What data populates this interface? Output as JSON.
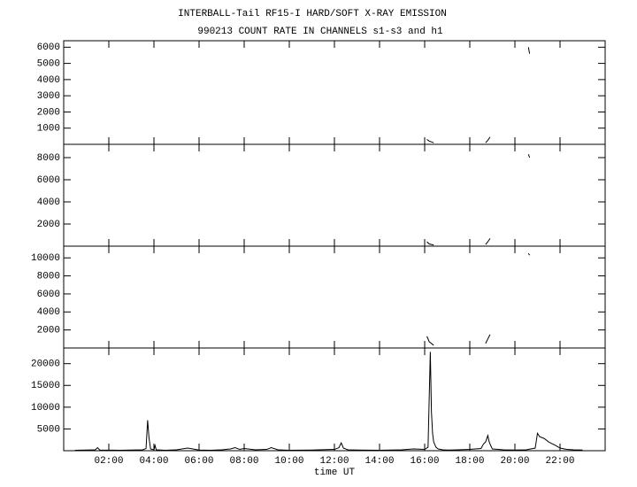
{
  "chart_data": [
    {
      "type": "line",
      "title": "INTERBALL-Tail RF15-I HARD/SOFT X-RAY EMISSION",
      "subtitle": "990213  COUNT RATE IN CHANNELS s1-s3 and h1",
      "xlim": [
        0,
        24
      ],
      "ylim": [
        0,
        6400
      ],
      "yticks": [
        1000,
        2000,
        3000,
        4000,
        5000,
        6000
      ],
      "x": [
        16.1,
        16.2,
        16.4,
        16.5,
        18.7,
        18.8,
        18.9,
        19.0,
        20.6,
        20.65
      ],
      "series": [
        {
          "color": "#000000",
          "values": [
            300,
            200,
            100,
            null,
            100,
            250,
            450,
            null,
            6000,
            5600
          ]
        }
      ]
    },
    {
      "type": "line",
      "xlim": [
        0,
        24
      ],
      "ylim": [
        0,
        9200
      ],
      "yticks": [
        2000,
        4000,
        6000,
        8000
      ],
      "x": [
        16.1,
        16.2,
        16.4,
        16.5,
        18.7,
        18.8,
        18.9,
        19.0,
        20.6,
        20.65
      ],
      "series": [
        {
          "color": "#000000",
          "values": [
            400,
            200,
            100,
            null,
            150,
            400,
            700,
            null,
            8300,
            8000
          ]
        }
      ]
    },
    {
      "type": "line",
      "xlim": [
        0,
        24
      ],
      "ylim": [
        0,
        11300
      ],
      "yticks": [
        2000,
        4000,
        6000,
        8000,
        10000
      ],
      "x": [
        16.1,
        16.2,
        16.4,
        16.5,
        18.7,
        18.8,
        18.9,
        19.0,
        20.6,
        20.65
      ],
      "series": [
        {
          "color": "#000000",
          "values": [
            1300,
            700,
            300,
            null,
            500,
            1000,
            1500,
            null,
            10500,
            10300
          ]
        }
      ]
    },
    {
      "type": "line",
      "xlabel": "time UT",
      "xlim": [
        0,
        24
      ],
      "ylim": [
        0,
        23600
      ],
      "yticks": [
        5000,
        10000,
        15000,
        20000
      ],
      "xticks": [
        {
          "value": 2,
          "label": "02:00"
        },
        {
          "value": 4,
          "label": "04:00"
        },
        {
          "value": 6,
          "label": "06:00"
        },
        {
          "value": 8,
          "label": "08:00"
        },
        {
          "value": 10,
          "label": "10:00"
        },
        {
          "value": 12,
          "label": "12:00"
        },
        {
          "value": 14,
          "label": "14:00"
        },
        {
          "value": 16,
          "label": "16:00"
        },
        {
          "value": 18,
          "label": "18:00"
        },
        {
          "value": 20,
          "label": "20:00"
        },
        {
          "value": 22,
          "label": "22:00"
        }
      ],
      "x": [
        0.5,
        1.0,
        1.4,
        1.5,
        1.6,
        2.5,
        3.0,
        3.5,
        3.65,
        3.72,
        3.78,
        3.85,
        4.0,
        4.05,
        4.1,
        4.5,
        5.0,
        5.5,
        6.0,
        6.5,
        7.0,
        7.4,
        7.6,
        7.8,
        8.0,
        8.5,
        9.0,
        9.2,
        9.5,
        10.0,
        11.0,
        12.0,
        12.2,
        12.3,
        12.4,
        12.6,
        13.0,
        14.0,
        15.0,
        15.5,
        16.0,
        16.15,
        16.25,
        16.3,
        16.35,
        16.4,
        16.5,
        16.6,
        16.8,
        17.0,
        17.5,
        18.0,
        18.5,
        18.6,
        18.7,
        18.8,
        18.85,
        18.9,
        19.0,
        19.5,
        20.0,
        20.5,
        20.9,
        21.0,
        21.1,
        21.3,
        21.5,
        21.8,
        22.0,
        22.3,
        22.6,
        23.0
      ],
      "series": [
        {
          "color": "#000000",
          "values": [
            100,
            150,
            200,
            700,
            150,
            100,
            150,
            200,
            500,
            7000,
            3000,
            400,
            200,
            1200,
            200,
            100,
            200,
            600,
            150,
            100,
            200,
            400,
            700,
            300,
            500,
            200,
            300,
            700,
            200,
            100,
            150,
            300,
            700,
            1800,
            600,
            200,
            150,
            100,
            200,
            400,
            300,
            800,
            22700,
            9000,
            4000,
            2000,
            800,
            400,
            200,
            150,
            200,
            300,
            500,
            1500,
            2000,
            3500,
            2200,
            1500,
            400,
            200,
            150,
            200,
            600,
            4000,
            3200,
            2800,
            2000,
            1200,
            600,
            300,
            200,
            150
          ]
        }
      ]
    }
  ]
}
